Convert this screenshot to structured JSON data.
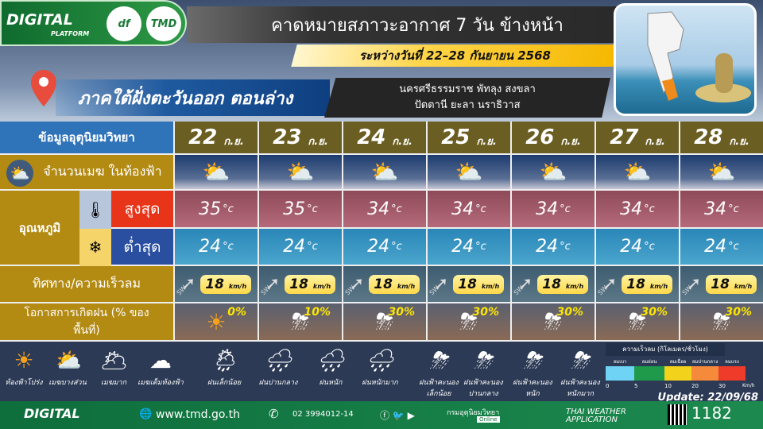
{
  "header": {
    "logo_text": "DIGITAL",
    "logo_sub": "PLATFORM",
    "logo2": "df",
    "logo3": "TMD",
    "title": "คาดหมายสภาวะอากาศ 7 วัน ข้างหน้า",
    "date_range": "ระหว่างวันที่ 22–28 กันยายน 2568"
  },
  "region": {
    "name": "ภาคใต้ฝั่งตะวันออก ตอนล่าง",
    "provinces_line1": "นครศรีธรรมราช พัทลุง สงขลา",
    "provinces_line2": "ปัตตานี ยะลา นราธิวาส"
  },
  "rows": {
    "header": "ข้อมูลอุตุนิยมวิทยา",
    "cloud": "จำนวนเมฆ ในท้องฟ้า",
    "temperature": "อุณหภูมิ",
    "max": "สูงสุด",
    "min": "ต่ำสุด",
    "wind": "ทิศทาง/ความเร็วลม",
    "rain": "โอกาสการเกิดฝน (% ของพื้นที่)"
  },
  "units": {
    "temp": "°c",
    "wind": "km/h"
  },
  "days": [
    {
      "date": "22",
      "month": "ก.ย.",
      "cloud_icon": "partly-cloudy-icon",
      "max": "35",
      "min": "24",
      "wind_dir": "SW",
      "wind_speed": "18",
      "rain_icon": "sunny-icon",
      "rain_pct": "0%"
    },
    {
      "date": "23",
      "month": "ก.ย.",
      "cloud_icon": "partly-cloudy-icon",
      "max": "35",
      "min": "24",
      "wind_dir": "SW",
      "wind_speed": "18",
      "rain_icon": "thunderstorm-icon",
      "rain_pct": "10%"
    },
    {
      "date": "24",
      "month": "ก.ย.",
      "cloud_icon": "partly-cloudy-icon",
      "max": "34",
      "min": "24",
      "wind_dir": "SW",
      "wind_speed": "18",
      "rain_icon": "thunderstorm-icon",
      "rain_pct": "30%"
    },
    {
      "date": "25",
      "month": "ก.ย.",
      "cloud_icon": "partly-cloudy-icon",
      "max": "34",
      "min": "24",
      "wind_dir": "SW",
      "wind_speed": "18",
      "rain_icon": "thunderstorm-icon",
      "rain_pct": "30%"
    },
    {
      "date": "26",
      "month": "ก.ย.",
      "cloud_icon": "partly-cloudy-icon",
      "max": "34",
      "min": "24",
      "wind_dir": "SW",
      "wind_speed": "18",
      "rain_icon": "thunderstorm-icon",
      "rain_pct": "30%"
    },
    {
      "date": "27",
      "month": "ก.ย.",
      "cloud_icon": "partly-cloudy-icon",
      "max": "34",
      "min": "24",
      "wind_dir": "SW",
      "wind_speed": "18",
      "rain_icon": "thunderstorm-icon",
      "rain_pct": "30%"
    },
    {
      "date": "28",
      "month": "ก.ย.",
      "cloud_icon": "partly-cloudy-icon",
      "max": "34",
      "min": "24",
      "wind_dir": "SW",
      "wind_speed": "18",
      "rain_icon": "thunderstorm-icon",
      "rain_pct": "30%"
    }
  ],
  "legend": [
    {
      "label": "ท้องฟ้าโปร่ง",
      "icon": "☀"
    },
    {
      "label": "เมฆบางส่วน",
      "icon": "⛅"
    },
    {
      "label": "เมฆมาก",
      "icon": "🌥"
    },
    {
      "label": "เมฆเต็มท้องฟ้า",
      "icon": "☁"
    },
    {
      "label": "ฝนเล็กน้อย",
      "icon": "🌦"
    },
    {
      "label": "ฝนปานกลาง",
      "icon": "🌧"
    },
    {
      "label": "ฝนหนัก",
      "icon": "🌧"
    },
    {
      "label": "ฝนหนักมาก",
      "icon": "🌧"
    },
    {
      "label": "ฝนฟ้าคะนอง เล็กน้อย",
      "icon": "⛈"
    },
    {
      "label": "ฝนฟ้าคะนอง ปานกลาง",
      "icon": "⛈"
    },
    {
      "label": "ฝนฟ้าคะนอง หนัก",
      "icon": "⛈"
    },
    {
      "label": "ฝนฟ้าคะนอง หนักมาก",
      "icon": "⛈"
    }
  ],
  "wind_scale": {
    "title": "ความเร็วลม (กิโลเมตร/ชั่วโมง)",
    "levels": [
      {
        "label": "ลมเบา",
        "color": "#6fd3f5"
      },
      {
        "label": "ลมอ่อน",
        "color": "#1e9a4a"
      },
      {
        "label": "ลมเฉื่อย",
        "color": "#f2d21a"
      },
      {
        "label": "ลมปานกลาง",
        "color": "#f58a3a"
      },
      {
        "label": "ลมแรง",
        "color": "#ee3b2a"
      }
    ],
    "ticks": [
      "0",
      "5",
      "10",
      "20",
      "30"
    ],
    "unit": "Km/h"
  },
  "update": "Update: 22/09/68",
  "footer": {
    "logo": "DIGITAL",
    "website": "www.tmd.go.th",
    "phone": "02 3994012-14",
    "social": "กรมอุตุนิยมวิทยา",
    "online": "Online",
    "app": "THAI WEATHER APPLICATION",
    "hotline": "1182",
    "hotline_sub": "www.tmd.go.th"
  }
}
